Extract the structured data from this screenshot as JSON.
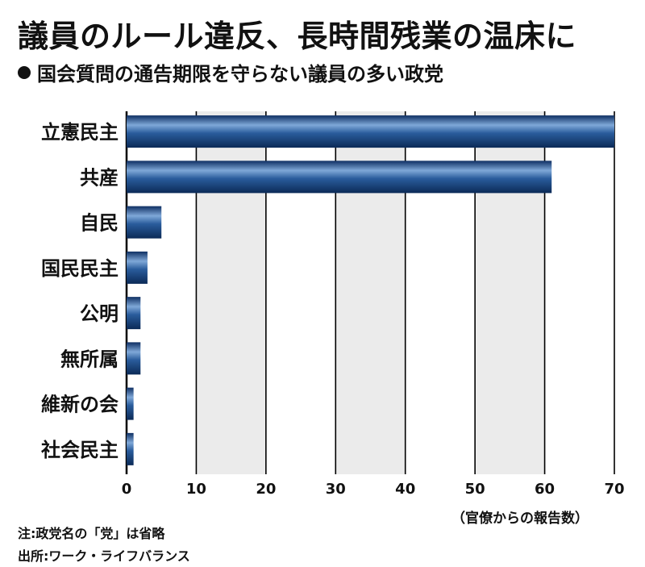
{
  "title": "議員のルール違反、長時間残業の温床に",
  "subtitle": "国会質問の通告期限を守らない議員の多い政党",
  "unit_label": "（官僚からの報告数）",
  "notes": {
    "note": "注:政党名の「党」は省略",
    "source": "出所:ワーク・ライフバランス"
  },
  "colors": {
    "bar": "#1f4f8f",
    "plot_bg": "#ebebeb",
    "grid": "#000000"
  },
  "chart_data": {
    "type": "bar",
    "orientation": "horizontal",
    "title": "",
    "xlabel": "",
    "ylabel": "",
    "categories": [
      "立憲民主",
      "共産",
      "自民",
      "国民民主",
      "公明",
      "無所属",
      "維新の会",
      "社会民主"
    ],
    "values": [
      70,
      61,
      5,
      3,
      2,
      2,
      1,
      1
    ],
    "xlim": [
      0,
      70
    ],
    "xticks": [
      0,
      10,
      20,
      30,
      40,
      50,
      60,
      70
    ],
    "grid": true
  }
}
